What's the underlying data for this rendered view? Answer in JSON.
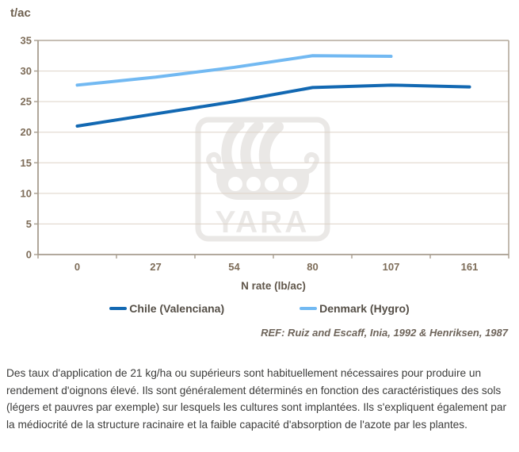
{
  "chart": {
    "y_unit_label": "t/ac",
    "x_axis_title": "N rate (lb/ac)",
    "ref_text": "REF: Ruiz and Escaff, Inia, 1992 & Henriksen, 1987"
  },
  "chart_data": {
    "type": "line",
    "title": "",
    "xlabel": "N rate (lb/ac)",
    "ylabel": "t/ac",
    "categories": [
      "0",
      "27",
      "54",
      "80",
      "107",
      "161"
    ],
    "yticks": [
      0,
      5,
      10,
      15,
      20,
      25,
      30,
      35
    ],
    "ylim": [
      0,
      35
    ],
    "grid": true,
    "legend_position": "bottom",
    "series": [
      {
        "name": "Chile (Valenciana)",
        "color": "#1268B2",
        "values": [
          21,
          23,
          25,
          27.3,
          27.7,
          27.4
        ]
      },
      {
        "name": "Denmark (Hygro)",
        "color": "#72B9F2",
        "values": [
          27.7,
          29,
          30.6,
          32.5,
          32.4,
          null
        ]
      }
    ]
  },
  "watermark": {
    "text": "YARA"
  },
  "description": "Des taux d'application de 21 kg/ha ou supérieurs sont habituellement nécessaires pour produire un rendement d'oignons élevé. Ils sont généralement déterminés en fonction des caractéristiques des sols (légers et pauvres par exemple) sur lesquels les cultures sont implantées. Ils s'expliquent également par la médiocrité de la structure racinaire et la faible capacité d'absorption de l'azote par les plantes.",
  "colors": {
    "axis": "#A79D8F",
    "border": "#B3A99B",
    "gridline": "#DDD2C7",
    "tick_label": "#7D6C58",
    "watermark": "#EAE8E6",
    "paragraph_text": "#3C3C3B"
  }
}
